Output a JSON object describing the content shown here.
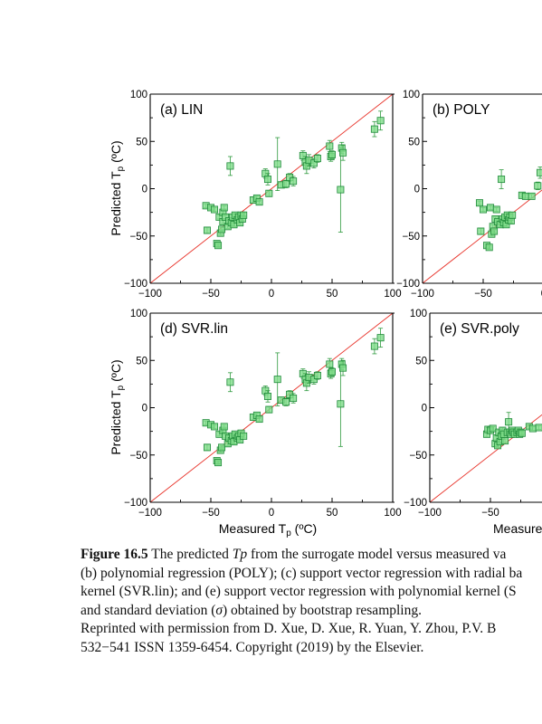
{
  "axes": {
    "xlabel": "Measured T",
    "xlabel_sub": "p",
    "xlabel_unit": " (ºC)",
    "ylabel": "Predicted T",
    "ylabel_sub": "p",
    "ylabel_unit": " (ºC)",
    "tick_labels": [
      "−100",
      "−50",
      "0",
      "50",
      "100"
    ]
  },
  "colors": {
    "marker_fill": "#7fdc8a",
    "marker_edge": "#1f8a3a",
    "error_bar": "#2e9a3e",
    "diagonal": "#e8332a"
  },
  "chart_data": [
    {
      "type": "scatter",
      "panel": "(a) LIN",
      "xlim": [
        -100,
        100
      ],
      "ylim": [
        -100,
        100
      ],
      "points": [
        [
          -53,
          -44,
          3
        ],
        [
          -54,
          -18,
          2
        ],
        [
          -50,
          -20,
          2
        ],
        [
          -47,
          -22,
          2
        ],
        [
          -45,
          -58,
          2
        ],
        [
          -44,
          -60,
          2
        ],
        [
          -43,
          -30,
          2
        ],
        [
          -42,
          -47,
          2
        ],
        [
          -41,
          -43,
          2
        ],
        [
          -40,
          -25,
          2
        ],
        [
          -40,
          -35,
          2
        ],
        [
          -39,
          -20,
          2
        ],
        [
          -38,
          -30,
          2
        ],
        [
          -36,
          -40,
          2
        ],
        [
          -35,
          -34,
          2
        ],
        [
          -34,
          24,
          10
        ],
        [
          -33,
          -36,
          2
        ],
        [
          -32,
          -30,
          2
        ],
        [
          -31,
          -38,
          2
        ],
        [
          -30,
          -28,
          2
        ],
        [
          -28,
          -33,
          2
        ],
        [
          -27,
          -30,
          2
        ],
        [
          -26,
          -36,
          2
        ],
        [
          -25,
          -28,
          2
        ],
        [
          -24,
          -32,
          2
        ],
        [
          -23,
          -28,
          2
        ],
        [
          -15,
          -12,
          3
        ],
        [
          -12,
          -10,
          2
        ],
        [
          -10,
          -14,
          2
        ],
        [
          -5,
          16,
          5
        ],
        [
          -3,
          10,
          6
        ],
        [
          -2,
          -5,
          3
        ],
        [
          5,
          26,
          28
        ],
        [
          8,
          4,
          3
        ],
        [
          12,
          5,
          4
        ],
        [
          15,
          12,
          4
        ],
        [
          18,
          8,
          5
        ],
        [
          26,
          35,
          5
        ],
        [
          28,
          28,
          6
        ],
        [
          29,
          24,
          8
        ],
        [
          31,
          30,
          6
        ],
        [
          35,
          27,
          5
        ],
        [
          38,
          32,
          4
        ],
        [
          48,
          45,
          6
        ],
        [
          49,
          34,
          5
        ],
        [
          50,
          36,
          4
        ],
        [
          57,
          -1,
          45
        ],
        [
          58,
          43,
          6
        ],
        [
          59,
          38,
          8
        ],
        [
          85,
          63,
          8
        ],
        [
          90,
          72,
          10
        ]
      ]
    },
    {
      "type": "scatter",
      "panel": "(b) POLY",
      "xlim": [
        -100,
        100
      ],
      "ylim": [
        -100,
        100
      ],
      "points": [
        [
          -53,
          -15,
          2
        ],
        [
          -52,
          -45,
          3
        ],
        [
          -50,
          -22,
          2
        ],
        [
          -47,
          -60,
          2
        ],
        [
          -45,
          -62,
          2
        ],
        [
          -44,
          -20,
          2
        ],
        [
          -43,
          -48,
          2
        ],
        [
          -42,
          -40,
          2
        ],
        [
          -41,
          -45,
          2
        ],
        [
          -40,
          -32,
          2
        ],
        [
          -39,
          -22,
          2
        ],
        [
          -38,
          -35,
          2
        ],
        [
          -36,
          -38,
          2
        ],
        [
          -35,
          10,
          10
        ],
        [
          -34,
          -32,
          2
        ],
        [
          -33,
          -36,
          2
        ],
        [
          -32,
          -30,
          2
        ],
        [
          -31,
          -38,
          2
        ],
        [
          -30,
          -28,
          2
        ],
        [
          -29,
          -33,
          2
        ],
        [
          -28,
          -30,
          2
        ],
        [
          -27,
          -34,
          2
        ],
        [
          -26,
          -28,
          3
        ],
        [
          -18,
          -7,
          2
        ],
        [
          -15,
          -8,
          2
        ],
        [
          -10,
          -8,
          2
        ],
        [
          -5,
          3,
          4
        ],
        [
          -3,
          17,
          6
        ]
      ]
    },
    {
      "type": "scatter",
      "panel": "(d) SVR.lin",
      "xlim": [
        -100,
        100
      ],
      "ylim": [
        -100,
        100
      ],
      "points": [
        [
          -53,
          -42,
          3
        ],
        [
          -54,
          -16,
          2
        ],
        [
          -50,
          -18,
          2
        ],
        [
          -47,
          -20,
          2
        ],
        [
          -45,
          -56,
          2
        ],
        [
          -44,
          -58,
          2
        ],
        [
          -43,
          -28,
          2
        ],
        [
          -42,
          -45,
          2
        ],
        [
          -41,
          -42,
          2
        ],
        [
          -40,
          -24,
          2
        ],
        [
          -39,
          -20,
          2
        ],
        [
          -38,
          -30,
          2
        ],
        [
          -36,
          -38,
          2
        ],
        [
          -35,
          -32,
          2
        ],
        [
          -34,
          27,
          10
        ],
        [
          -33,
          -35,
          2
        ],
        [
          -32,
          -30,
          2
        ],
        [
          -31,
          -36,
          2
        ],
        [
          -30,
          -28,
          2
        ],
        [
          -28,
          -32,
          2
        ],
        [
          -27,
          -30,
          2
        ],
        [
          -26,
          -34,
          2
        ],
        [
          -25,
          -27,
          2
        ],
        [
          -23,
          -30,
          2
        ],
        [
          -15,
          -10,
          3
        ],
        [
          -12,
          -8,
          2
        ],
        [
          -10,
          -12,
          2
        ],
        [
          -5,
          18,
          5
        ],
        [
          -3,
          12,
          6
        ],
        [
          -2,
          -2,
          3
        ],
        [
          5,
          30,
          28
        ],
        [
          8,
          8,
          3
        ],
        [
          12,
          6,
          4
        ],
        [
          15,
          14,
          4
        ],
        [
          18,
          10,
          5
        ],
        [
          26,
          36,
          5
        ],
        [
          28,
          30,
          6
        ],
        [
          29,
          26,
          8
        ],
        [
          31,
          32,
          6
        ],
        [
          35,
          30,
          5
        ],
        [
          38,
          34,
          4
        ],
        [
          48,
          46,
          6
        ],
        [
          49,
          36,
          5
        ],
        [
          50,
          38,
          4
        ],
        [
          57,
          4,
          45
        ],
        [
          58,
          46,
          6
        ],
        [
          59,
          42,
          8
        ],
        [
          85,
          65,
          8
        ],
        [
          90,
          74,
          10
        ]
      ]
    },
    {
      "type": "scatter",
      "panel": "(e) SVR.poly",
      "xlim": [
        -100,
        100
      ],
      "ylim": [
        -100,
        100
      ],
      "points": [
        [
          -53,
          -28,
          3
        ],
        [
          -52,
          -23,
          2
        ],
        [
          -50,
          -24,
          2
        ],
        [
          -48,
          -22,
          2
        ],
        [
          -46,
          -38,
          3
        ],
        [
          -45,
          -32,
          2
        ],
        [
          -44,
          -40,
          2
        ],
        [
          -43,
          -26,
          2
        ],
        [
          -42,
          -36,
          2
        ],
        [
          -41,
          -30,
          2
        ],
        [
          -40,
          -24,
          3
        ],
        [
          -39,
          -28,
          2
        ],
        [
          -38,
          -35,
          2
        ],
        [
          -36,
          -26,
          2
        ],
        [
          -35,
          -15,
          10
        ],
        [
          -34,
          -26,
          2
        ],
        [
          -33,
          -28,
          2
        ],
        [
          -32,
          -24,
          2
        ],
        [
          -31,
          -26,
          2
        ],
        [
          -30,
          -28,
          2
        ],
        [
          -28,
          -26,
          2
        ],
        [
          -27,
          -24,
          2
        ],
        [
          -26,
          -28,
          2
        ],
        [
          -25,
          -26,
          2
        ],
        [
          -24,
          -27,
          2
        ],
        [
          -18,
          -20,
          2
        ],
        [
          -15,
          -22,
          2
        ],
        [
          -10,
          -21,
          2
        ]
      ]
    }
  ],
  "caption": {
    "label": "Figure 16.5",
    "l1a": "  The predicted ",
    "l1var": "Tp",
    "l1b": " from the surrogate model versus measured va",
    "l2": "(b) polynomial regression (POLY); (c) support vector regression with radial ba",
    "l3": "kernel (SVR.lin); and (e) support vector regression with polynomial kernel (S",
    "l4a": "and standard deviation (",
    "l4sym": "σ",
    "l4b": ") obtained by bootstrap resampling.",
    "l5": "Reprinted with permission from D. Xue, D. Xue, R. Yuan, Y. Zhou, P.V. B",
    "l6": "532−541 ISSN 1359-6454. Copyright (2019) by the Elsevier."
  }
}
